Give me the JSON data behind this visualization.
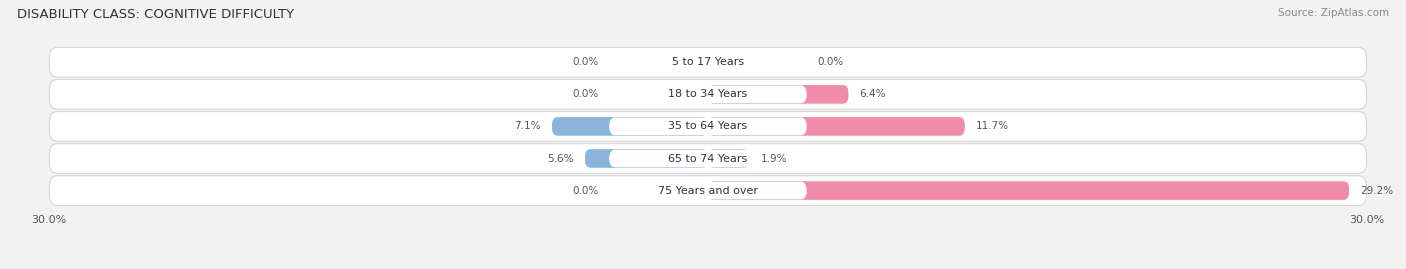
{
  "title": "DISABILITY CLASS: COGNITIVE DIFFICULTY",
  "source": "Source: ZipAtlas.com",
  "categories": [
    "5 to 17 Years",
    "18 to 34 Years",
    "35 to 64 Years",
    "65 to 74 Years",
    "75 Years and over"
  ],
  "male_values": [
    0.0,
    0.0,
    7.1,
    5.6,
    0.0
  ],
  "female_values": [
    0.0,
    6.4,
    11.7,
    1.9,
    29.2
  ],
  "max_val": 30.0,
  "male_color": "#8ab4d9",
  "female_color": "#f08baa",
  "bg_color": "#f2f2f2",
  "row_bg_color": "#e8e8e8",
  "row_border_color": "#cccccc",
  "title_fontsize": 9.5,
  "label_fontsize": 8,
  "value_fontsize": 7.5,
  "tick_fontsize": 8
}
